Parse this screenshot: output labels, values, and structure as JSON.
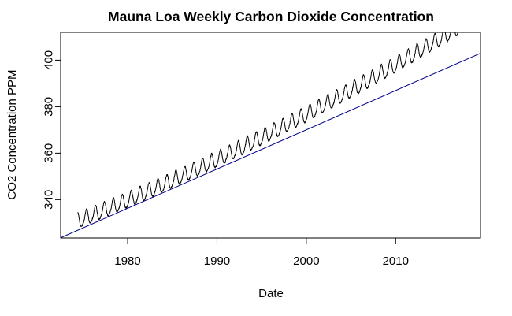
{
  "chart_data": {
    "type": "line",
    "title": "Mauna Loa Weekly Carbon Dioxide Concentration",
    "xlabel": "Date",
    "ylabel": "CO2 Concentration PPM",
    "xlim": [
      1972.5,
      2019.5
    ],
    "ylim": [
      323.5,
      412
    ],
    "x_ticks": [
      1980,
      1990,
      2000,
      2010
    ],
    "x_tick_labels": [
      "1980",
      "1990",
      "2000",
      "2010"
    ],
    "y_ticks": [
      340,
      360,
      380,
      400
    ],
    "y_tick_labels": [
      "340",
      "360",
      "380",
      "400"
    ],
    "grid": false,
    "legend": "none",
    "series": [
      {
        "kind": "weekly-observed",
        "color": "#000000",
        "x_start": 1974.4,
        "x_end": 2017.2,
        "points_per_year": 52,
        "trend_at_1974_4": 330.6,
        "trend_slope_ppm_per_year": 1.55,
        "trend_curvature_ppm_per_year2": 0.0095,
        "seasonal_amplitude": 3.2,
        "seasonal_peak_fraction": 0.38,
        "noise_sd": 0.35
      },
      {
        "kind": "linear-fit",
        "color": "#00008b",
        "x": [
          1972.5,
          2019.5
        ],
        "y": [
          323.6,
          403.0
        ]
      }
    ]
  }
}
